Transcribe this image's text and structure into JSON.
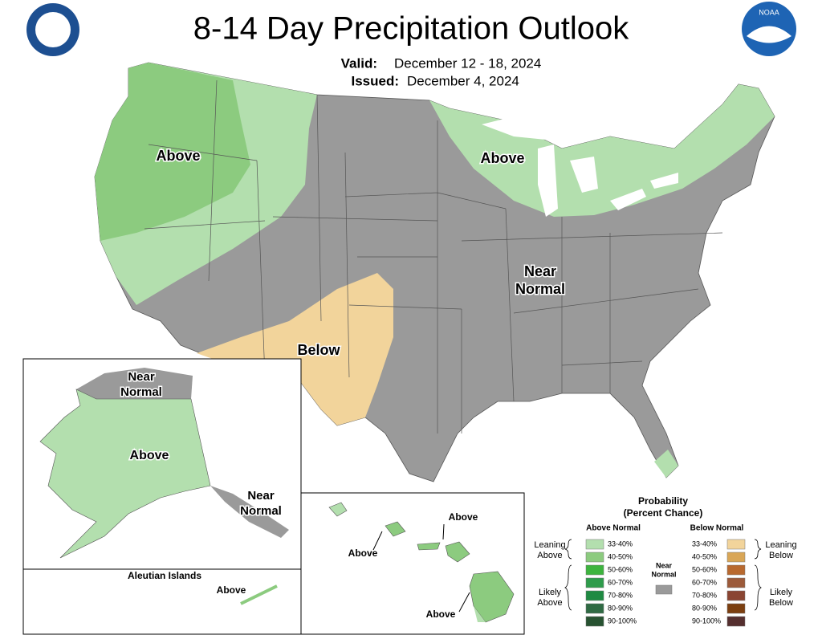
{
  "header": {
    "title": "8-14 Day Precipitation Outlook",
    "valid_label": "Valid:",
    "valid": "December 12 - 18, 2024",
    "issued_label": "Issued:",
    "issued": "December 4, 2024",
    "logo": "NOAA"
  },
  "conus": {
    "northwest": "Above",
    "northeast": "Above",
    "center": [
      "Near",
      "Normal"
    ],
    "southwest": "Below"
  },
  "alaska": {
    "north": [
      "Near",
      "Normal"
    ],
    "main": "Above",
    "southeast": [
      "Near",
      "Normal"
    ]
  },
  "aleutians": {
    "title": "Aleutian Islands",
    "label": "Above"
  },
  "hawaii": {
    "labels": [
      "Above",
      "Above",
      "Above"
    ]
  },
  "legend": {
    "title": [
      "Probability",
      "(Percent Chance)"
    ],
    "above": {
      "header": "Above Normal",
      "items": [
        {
          "label": "33-40%",
          "color": "#b3dfae"
        },
        {
          "label": "40-50%",
          "color": "#8ccb7f"
        },
        {
          "label": "50-60%",
          "color": "#3db43e"
        },
        {
          "label": "60-70%",
          "color": "#2e9c4b"
        },
        {
          "label": "70-80%",
          "color": "#1f8a42"
        },
        {
          "label": "80-90%",
          "color": "#2f6a43"
        },
        {
          "label": "90-100%",
          "color": "#275231"
        }
      ]
    },
    "below": {
      "header": "Below Normal",
      "items": [
        {
          "label": "33-40%",
          "color": "#f2d49b"
        },
        {
          "label": "40-50%",
          "color": "#d9a656"
        },
        {
          "label": "50-60%",
          "color": "#b8692f"
        },
        {
          "label": "60-70%",
          "color": "#9c5a3a"
        },
        {
          "label": "70-80%",
          "color": "#8a4532"
        },
        {
          "label": "80-90%",
          "color": "#7c3f10"
        },
        {
          "label": "90-100%",
          "color": "#552f2f"
        }
      ]
    },
    "near": {
      "label": [
        "Near",
        "Normal"
      ],
      "color": "#9a9a9a"
    },
    "leaning_above": [
      "Leaning",
      "Above"
    ],
    "likely_above": [
      "Likely",
      "Above"
    ],
    "leaning_below": [
      "Leaning",
      "Below"
    ],
    "likely_below": [
      "Likely",
      "Below"
    ]
  }
}
